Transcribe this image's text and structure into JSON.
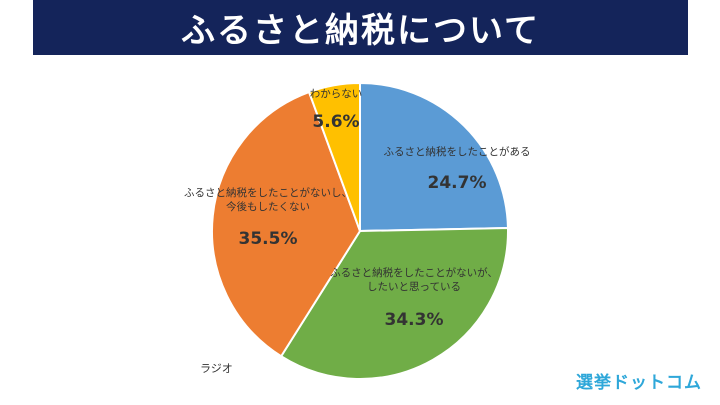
{
  "header": {
    "title": "ふるさと納税について"
  },
  "chart_data": {
    "type": "pie",
    "title": "ふるさと納税について",
    "start_angle_deg": 0,
    "direction": "clockwise",
    "slices": [
      {
        "label_lines": [
          "ふるさと納税をしたことがある"
        ],
        "value": 24.7,
        "value_label": "24.7%",
        "color": "#5b9bd5"
      },
      {
        "label_lines": [
          "ふるさと納税をしたことがないが、",
          "したいと思っている"
        ],
        "value": 34.3,
        "value_label": "34.3%",
        "color": "#70ad47"
      },
      {
        "label_lines": [
          "ふるさと納税をしたことがないし、",
          "今後もしたくない"
        ],
        "value": 35.5,
        "value_label": "35.5%",
        "color": "#ed7d31"
      },
      {
        "label_lines": [
          "わからない"
        ],
        "value": 5.6,
        "value_label": "5.6%",
        "color": "#ffc000"
      }
    ]
  },
  "footer": {
    "source": "ラジオ",
    "logo": "選挙ドットコム"
  }
}
